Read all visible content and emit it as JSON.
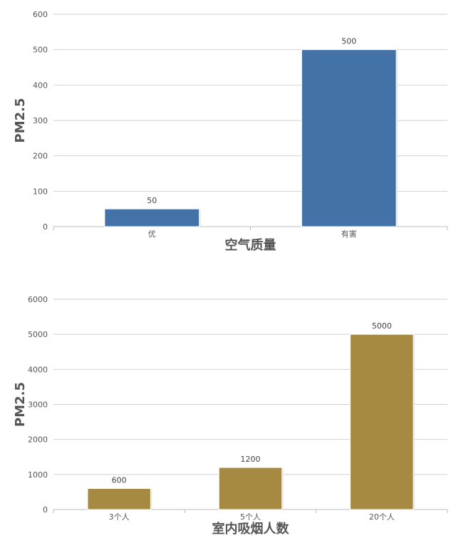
{
  "chart_data": [
    {
      "type": "bar",
      "categories": [
        "优",
        "有害"
      ],
      "values": [
        50,
        500
      ],
      "ylim": [
        0,
        600
      ],
      "yticks": [
        0,
        100,
        200,
        300,
        400,
        500,
        600
      ],
      "xlabel": "空气质量",
      "ylabel": "PM2.5",
      "grid": true,
      "bar_color": "#4272a6"
    },
    {
      "type": "bar",
      "categories": [
        "3个人",
        "5个人",
        "20个人"
      ],
      "values": [
        600,
        1200,
        5000
      ],
      "ylim": [
        0,
        6000
      ],
      "yticks": [
        0,
        1000,
        2000,
        3000,
        4000,
        5000,
        6000
      ],
      "xlabel": "室内吸烟人数",
      "ylabel": "PM2.5",
      "grid": true,
      "bar_color": "#a68a42"
    }
  ]
}
